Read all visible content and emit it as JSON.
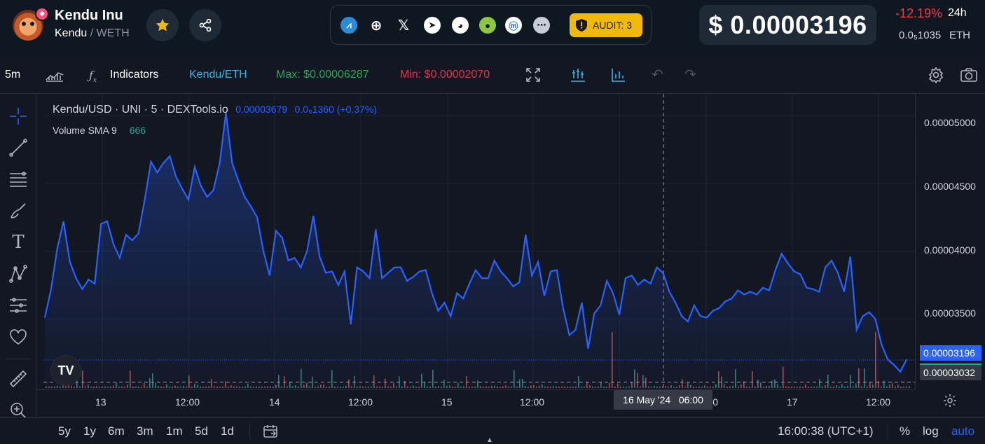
{
  "header": {
    "token_name": "Kendu Inu",
    "base_symbol": "Kendu",
    "separator": " / ",
    "quote_symbol": "WETH",
    "audit_label": "AUDIT: 3",
    "price_usd": "$ 0.00003196",
    "change_24h": "-12.19%",
    "period": "24h",
    "price_eth": "0.0₅1035",
    "price_eth_unit": "ETH",
    "social_icons": [
      "dextools-icon",
      "website-icon",
      "x-icon",
      "telegram-icon",
      "reddit-icon",
      "coingecko-icon",
      "coinmarketcap-icon",
      "more-icon"
    ]
  },
  "toolbar": {
    "interval": "5m",
    "indicators_label": "Indicators",
    "pair_label": "Kendu/ETH",
    "max_label": "Max: $0.00006287",
    "min_label": "Min: $0.00002070"
  },
  "legend": {
    "title": "Kendu/USD · UNI · 5 · DEXTools.io",
    "value": "0.00003679",
    "change": "0.0₆1360 (+0.37%)",
    "volume_label": "Volume SMA 9",
    "volume_value": "666"
  },
  "chart_data": {
    "type": "area",
    "title": "Kendu/USD · UNI · 5 · DEXTools.io",
    "x_ticks": [
      "13",
      "12:00",
      "14",
      "12:00",
      "15",
      "12:00",
      "16",
      "12:00",
      "17",
      "12:00"
    ],
    "y_ticks": [
      "0.00005000",
      "0.00004500",
      "0.00004000",
      "0.00003500"
    ],
    "ylim": [
      2.98e-05,
      5.16e-05
    ],
    "series": [
      {
        "values": [
          3.51e-05,
          3.72e-05,
          4.02e-05,
          4.22e-05,
          3.92e-05,
          3.8e-05,
          3.72e-05,
          3.79e-05,
          3.76e-05,
          4.2e-05,
          4.22e-05,
          4.05e-05,
          3.95e-05,
          4.12e-05,
          4.08e-05,
          4.13e-05,
          4.38e-05,
          4.66e-05,
          4.58e-05,
          4.65e-05,
          4.7e-05,
          4.55e-05,
          4.46e-05,
          4.38e-05,
          4.62e-05,
          4.48e-05,
          4.4e-05,
          4.45e-05,
          4.65e-05,
          5.02e-05,
          4.65e-05,
          4.52e-05,
          4.4e-05,
          4.33e-05,
          4.25e-05,
          4e-05,
          3.82e-05,
          4.15e-05,
          4.1e-05,
          3.93e-05,
          3.95e-05,
          3.88e-05,
          4e-05,
          4.26e-05,
          3.96e-05,
          3.84e-05,
          3.85e-05,
          3.75e-05,
          3.85e-05,
          3.46e-05,
          3.88e-05,
          3.85e-05,
          3.8e-05,
          4.16e-05,
          3.8e-05,
          3.84e-05,
          3.88e-05,
          3.88e-05,
          3.78e-05,
          3.81e-05,
          3.85e-05,
          3.86e-05,
          3.69e-05,
          3.56e-05,
          3.62e-05,
          3.52e-05,
          3.69e-05,
          3.65e-05,
          3.76e-05,
          3.86e-05,
          3.8e-05,
          3.8e-05,
          3.93e-05,
          3.85e-05,
          3.8e-05,
          3.74e-05,
          3.77e-05,
          4.12e-05,
          3.82e-05,
          3.92e-05,
          3.67e-05,
          3.85e-05,
          3.86e-05,
          3.58e-05,
          3.38e-05,
          3.42e-05,
          3.62e-05,
          3.28e-05,
          3.54e-05,
          3.6e-05,
          3.78e-05,
          3.69e-05,
          3.53e-05,
          3.8e-05,
          3.82e-05,
          3.75e-05,
          3.79e-05,
          3.76e-05,
          3.88e-05,
          3.84e-05,
          3.7e-05,
          3.62e-05,
          3.52e-05,
          3.48e-05,
          3.6e-05,
          3.52e-05,
          3.51e-05,
          3.56e-05,
          3.58e-05,
          3.63e-05,
          3.65e-05,
          3.71e-05,
          3.68e-05,
          3.7e-05,
          3.68e-05,
          3.73e-05,
          3.71e-05,
          3.86e-05,
          3.98e-05,
          3.91e-05,
          3.85e-05,
          3.83e-05,
          3.73e-05,
          3.72e-05,
          3.7e-05,
          3.88e-05,
          3.93e-05,
          3.84e-05,
          3.7e-05,
          3.96e-05,
          3.42e-05,
          3.52e-05,
          3.55e-05,
          3.5e-05,
          3.31e-05,
          3.2e-05,
          3.16e-05,
          3.11e-05,
          3.2e-05
        ]
      }
    ],
    "current_price": "0.00003196",
    "crosshair_price": "0.00003032",
    "crosshair_time": "16 May '24   06:00",
    "grid": true
  },
  "bottom": {
    "ranges": [
      "5y",
      "1y",
      "6m",
      "3m",
      "1m",
      "5d",
      "1d"
    ],
    "clock": "16:00:38 (UTC+1)",
    "percent": "%",
    "log": "log",
    "auto": "auto"
  }
}
